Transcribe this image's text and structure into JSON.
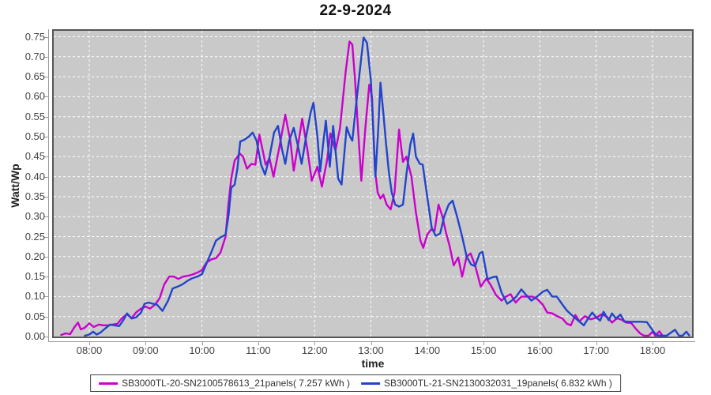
{
  "chart_data": {
    "type": "line",
    "title": "22-9-2024",
    "xlabel": "time",
    "ylabel": "Watt/Wp",
    "plot_background": "#c9c9c9",
    "gridline_color": "#ffffff",
    "grid": true,
    "legend_position": "bottom",
    "x_axis": {
      "tick_labels": [
        "08:00",
        "09:00",
        "10:00",
        "11:00",
        "12:00",
        "13:00",
        "14:00",
        "15:00",
        "16:00",
        "17:00",
        "18:00"
      ],
      "tick_hours": [
        8,
        9,
        10,
        11,
        12,
        13,
        14,
        15,
        16,
        17,
        18
      ],
      "range_hours": [
        7.34,
        18.73
      ]
    },
    "y_axis": {
      "tick_labels": [
        "0.00",
        "0.05",
        "0.10",
        "0.15",
        "0.20",
        "0.25",
        "0.30",
        "0.35",
        "0.40",
        "0.45",
        "0.50",
        "0.55",
        "0.60",
        "0.65",
        "0.70",
        "0.75"
      ],
      "tick_values": [
        0,
        0.05,
        0.1,
        0.15,
        0.2,
        0.25,
        0.3,
        0.35,
        0.4,
        0.45,
        0.5,
        0.55,
        0.6,
        0.65,
        0.7,
        0.75
      ],
      "ylim": [
        0,
        0.768
      ]
    },
    "series": [
      {
        "name": "SB3000TL-20-SN2100578613_21panels( 7.257 kWh )",
        "color": "#cc00cc",
        "points": [
          [
            7.5,
            0.004
          ],
          [
            7.58,
            0.008
          ],
          [
            7.66,
            0.006
          ],
          [
            7.73,
            0.022
          ],
          [
            7.8,
            0.035
          ],
          [
            7.85,
            0.018
          ],
          [
            7.92,
            0.022
          ],
          [
            8.0,
            0.033
          ],
          [
            8.08,
            0.024
          ],
          [
            8.17,
            0.03
          ],
          [
            8.25,
            0.028
          ],
          [
            8.33,
            0.028
          ],
          [
            8.42,
            0.03
          ],
          [
            8.5,
            0.032
          ],
          [
            8.58,
            0.046
          ],
          [
            8.67,
            0.056
          ],
          [
            8.75,
            0.046
          ],
          [
            8.83,
            0.06
          ],
          [
            8.92,
            0.07
          ],
          [
            9.0,
            0.075
          ],
          [
            9.08,
            0.07
          ],
          [
            9.17,
            0.08
          ],
          [
            9.25,
            0.096
          ],
          [
            9.33,
            0.13
          ],
          [
            9.42,
            0.15
          ],
          [
            9.5,
            0.15
          ],
          [
            9.58,
            0.144
          ],
          [
            9.67,
            0.15
          ],
          [
            9.75,
            0.152
          ],
          [
            9.83,
            0.155
          ],
          [
            9.92,
            0.16
          ],
          [
            10.0,
            0.166
          ],
          [
            10.08,
            0.185
          ],
          [
            10.17,
            0.193
          ],
          [
            10.25,
            0.196
          ],
          [
            10.33,
            0.21
          ],
          [
            10.42,
            0.25
          ],
          [
            10.47,
            0.33
          ],
          [
            10.52,
            0.395
          ],
          [
            10.58,
            0.44
          ],
          [
            10.67,
            0.458
          ],
          [
            10.73,
            0.45
          ],
          [
            10.8,
            0.42
          ],
          [
            10.88,
            0.432
          ],
          [
            10.95,
            0.43
          ],
          [
            11.02,
            0.505
          ],
          [
            11.08,
            0.465
          ],
          [
            11.13,
            0.43
          ],
          [
            11.2,
            0.445
          ],
          [
            11.27,
            0.4
          ],
          [
            11.37,
            0.47
          ],
          [
            11.48,
            0.555
          ],
          [
            11.57,
            0.49
          ],
          [
            11.63,
            0.415
          ],
          [
            11.72,
            0.49
          ],
          [
            11.78,
            0.545
          ],
          [
            11.87,
            0.47
          ],
          [
            11.95,
            0.39
          ],
          [
            12.05,
            0.425
          ],
          [
            12.13,
            0.375
          ],
          [
            12.22,
            0.44
          ],
          [
            12.28,
            0.508
          ],
          [
            12.37,
            0.465
          ],
          [
            12.45,
            0.52
          ],
          [
            12.55,
            0.66
          ],
          [
            12.62,
            0.738
          ],
          [
            12.67,
            0.73
          ],
          [
            12.72,
            0.64
          ],
          [
            12.78,
            0.5
          ],
          [
            12.83,
            0.39
          ],
          [
            12.9,
            0.52
          ],
          [
            12.97,
            0.63
          ],
          [
            13.02,
            0.6
          ],
          [
            13.07,
            0.42
          ],
          [
            13.12,
            0.36
          ],
          [
            13.17,
            0.345
          ],
          [
            13.22,
            0.355
          ],
          [
            13.28,
            0.33
          ],
          [
            13.35,
            0.318
          ],
          [
            13.42,
            0.36
          ],
          [
            13.5,
            0.518
          ],
          [
            13.57,
            0.437
          ],
          [
            13.63,
            0.45
          ],
          [
            13.72,
            0.4
          ],
          [
            13.8,
            0.31
          ],
          [
            13.88,
            0.24
          ],
          [
            13.93,
            0.222
          ],
          [
            14.0,
            0.255
          ],
          [
            14.07,
            0.268
          ],
          [
            14.13,
            0.264
          ],
          [
            14.2,
            0.33
          ],
          [
            14.27,
            0.3
          ],
          [
            14.33,
            0.262
          ],
          [
            14.4,
            0.225
          ],
          [
            14.47,
            0.178
          ],
          [
            14.55,
            0.198
          ],
          [
            14.62,
            0.15
          ],
          [
            14.7,
            0.2
          ],
          [
            14.77,
            0.208
          ],
          [
            14.85,
            0.178
          ],
          [
            14.95,
            0.125
          ],
          [
            15.05,
            0.145
          ],
          [
            15.13,
            0.128
          ],
          [
            15.22,
            0.104
          ],
          [
            15.32,
            0.09
          ],
          [
            15.4,
            0.1
          ],
          [
            15.48,
            0.106
          ],
          [
            15.57,
            0.085
          ],
          [
            15.67,
            0.1
          ],
          [
            15.77,
            0.1
          ],
          [
            15.87,
            0.1
          ],
          [
            15.95,
            0.094
          ],
          [
            16.05,
            0.08
          ],
          [
            16.13,
            0.06
          ],
          [
            16.22,
            0.058
          ],
          [
            16.32,
            0.05
          ],
          [
            16.4,
            0.045
          ],
          [
            16.48,
            0.032
          ],
          [
            16.55,
            0.028
          ],
          [
            16.63,
            0.054
          ],
          [
            16.7,
            0.038
          ],
          [
            16.8,
            0.051
          ],
          [
            16.9,
            0.043
          ],
          [
            17.0,
            0.047
          ],
          [
            17.1,
            0.056
          ],
          [
            17.2,
            0.048
          ],
          [
            17.28,
            0.035
          ],
          [
            17.37,
            0.046
          ],
          [
            17.45,
            0.042
          ],
          [
            17.53,
            0.035
          ],
          [
            17.62,
            0.034
          ],
          [
            17.7,
            0.02
          ],
          [
            17.78,
            0.008
          ],
          [
            17.85,
            0.002
          ],
          [
            17.93,
            0.002
          ],
          [
            18.0,
            0.012
          ],
          [
            18.05,
            0.002
          ],
          [
            18.12,
            0.013
          ],
          [
            18.18,
            0.002
          ],
          [
            18.23,
            0.001
          ]
        ]
      },
      {
        "name": "SB3000TL-21-SN2130032031_19panels( 6.832 kWh )",
        "color": "#2244cc",
        "points": [
          [
            7.92,
            0.002
          ],
          [
            8.0,
            0.005
          ],
          [
            8.07,
            0.012
          ],
          [
            8.13,
            0.005
          ],
          [
            8.2,
            0.01
          ],
          [
            8.28,
            0.02
          ],
          [
            8.37,
            0.03
          ],
          [
            8.45,
            0.028
          ],
          [
            8.53,
            0.026
          ],
          [
            8.6,
            0.04
          ],
          [
            8.67,
            0.058
          ],
          [
            8.75,
            0.045
          ],
          [
            8.83,
            0.048
          ],
          [
            8.92,
            0.06
          ],
          [
            8.98,
            0.082
          ],
          [
            9.05,
            0.085
          ],
          [
            9.13,
            0.082
          ],
          [
            9.2,
            0.08
          ],
          [
            9.3,
            0.064
          ],
          [
            9.4,
            0.09
          ],
          [
            9.48,
            0.12
          ],
          [
            9.57,
            0.125
          ],
          [
            9.65,
            0.13
          ],
          [
            9.75,
            0.14
          ],
          [
            9.83,
            0.146
          ],
          [
            9.92,
            0.15
          ],
          [
            10.0,
            0.156
          ],
          [
            10.08,
            0.182
          ],
          [
            10.17,
            0.212
          ],
          [
            10.25,
            0.24
          ],
          [
            10.33,
            0.248
          ],
          [
            10.42,
            0.255
          ],
          [
            10.47,
            0.3
          ],
          [
            10.52,
            0.372
          ],
          [
            10.58,
            0.38
          ],
          [
            10.63,
            0.42
          ],
          [
            10.68,
            0.488
          ],
          [
            10.75,
            0.492
          ],
          [
            10.83,
            0.5
          ],
          [
            10.9,
            0.51
          ],
          [
            10.97,
            0.49
          ],
          [
            11.05,
            0.43
          ],
          [
            11.12,
            0.405
          ],
          [
            11.2,
            0.45
          ],
          [
            11.28,
            0.51
          ],
          [
            11.35,
            0.527
          ],
          [
            11.42,
            0.47
          ],
          [
            11.48,
            0.432
          ],
          [
            11.55,
            0.49
          ],
          [
            11.63,
            0.522
          ],
          [
            11.7,
            0.48
          ],
          [
            11.77,
            0.432
          ],
          [
            11.85,
            0.5
          ],
          [
            11.93,
            0.56
          ],
          [
            11.98,
            0.585
          ],
          [
            12.05,
            0.5
          ],
          [
            12.1,
            0.413
          ],
          [
            12.15,
            0.48
          ],
          [
            12.2,
            0.54
          ],
          [
            12.27,
            0.425
          ],
          [
            12.33,
            0.527
          ],
          [
            12.42,
            0.395
          ],
          [
            12.48,
            0.38
          ],
          [
            12.57,
            0.524
          ],
          [
            12.63,
            0.5
          ],
          [
            12.67,
            0.49
          ],
          [
            12.73,
            0.57
          ],
          [
            12.8,
            0.66
          ],
          [
            12.87,
            0.748
          ],
          [
            12.93,
            0.735
          ],
          [
            13.0,
            0.64
          ],
          [
            13.04,
            0.52
          ],
          [
            13.08,
            0.4
          ],
          [
            13.13,
            0.52
          ],
          [
            13.17,
            0.635
          ],
          [
            13.22,
            0.56
          ],
          [
            13.27,
            0.48
          ],
          [
            13.32,
            0.41
          ],
          [
            13.37,
            0.36
          ],
          [
            13.43,
            0.33
          ],
          [
            13.5,
            0.325
          ],
          [
            13.57,
            0.33
          ],
          [
            13.63,
            0.405
          ],
          [
            13.7,
            0.48
          ],
          [
            13.75,
            0.508
          ],
          [
            13.8,
            0.45
          ],
          [
            13.87,
            0.432
          ],
          [
            13.92,
            0.43
          ],
          [
            14.0,
            0.35
          ],
          [
            14.08,
            0.272
          ],
          [
            14.15,
            0.252
          ],
          [
            14.23,
            0.258
          ],
          [
            14.3,
            0.3
          ],
          [
            14.38,
            0.33
          ],
          [
            14.45,
            0.34
          ],
          [
            14.53,
            0.3
          ],
          [
            14.62,
            0.25
          ],
          [
            14.7,
            0.2
          ],
          [
            14.78,
            0.18
          ],
          [
            14.85,
            0.176
          ],
          [
            14.93,
            0.208
          ],
          [
            14.98,
            0.212
          ],
          [
            15.07,
            0.143
          ],
          [
            15.15,
            0.148
          ],
          [
            15.23,
            0.15
          ],
          [
            15.32,
            0.11
          ],
          [
            15.42,
            0.082
          ],
          [
            15.5,
            0.09
          ],
          [
            15.58,
            0.1
          ],
          [
            15.67,
            0.118
          ],
          [
            15.75,
            0.105
          ],
          [
            15.85,
            0.09
          ],
          [
            15.95,
            0.1
          ],
          [
            16.05,
            0.112
          ],
          [
            16.13,
            0.117
          ],
          [
            16.22,
            0.1
          ],
          [
            16.3,
            0.1
          ],
          [
            16.4,
            0.08
          ],
          [
            16.48,
            0.065
          ],
          [
            16.58,
            0.052
          ],
          [
            16.68,
            0.04
          ],
          [
            16.78,
            0.028
          ],
          [
            16.87,
            0.048
          ],
          [
            16.93,
            0.06
          ],
          [
            17.0,
            0.048
          ],
          [
            17.07,
            0.04
          ],
          [
            17.13,
            0.062
          ],
          [
            17.22,
            0.041
          ],
          [
            17.28,
            0.058
          ],
          [
            17.35,
            0.045
          ],
          [
            17.43,
            0.055
          ],
          [
            17.5,
            0.038
          ],
          [
            17.6,
            0.037
          ],
          [
            17.7,
            0.037
          ],
          [
            17.8,
            0.037
          ],
          [
            17.9,
            0.036
          ],
          [
            17.97,
            0.022
          ],
          [
            18.03,
            0.01
          ],
          [
            18.08,
            0.003
          ],
          [
            18.17,
            0.002
          ],
          [
            18.25,
            0.002
          ],
          [
            18.33,
            0.01
          ],
          [
            18.4,
            0.017
          ],
          [
            18.47,
            0.002
          ],
          [
            18.53,
            0.002
          ],
          [
            18.6,
            0.012
          ],
          [
            18.65,
            0.003
          ]
        ]
      }
    ]
  }
}
